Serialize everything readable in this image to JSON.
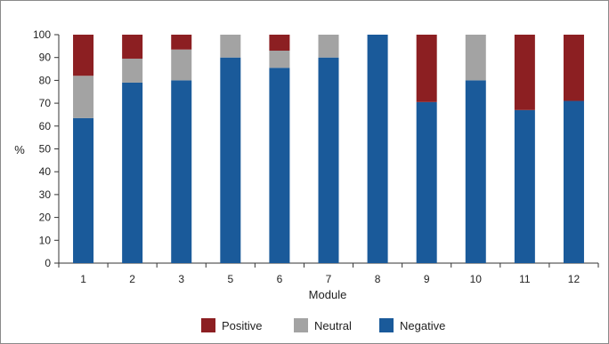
{
  "chart_data": {
    "type": "bar",
    "stacked": true,
    "categories": [
      "1",
      "2",
      "3",
      "5",
      "6",
      "7",
      "8",
      "9",
      "10",
      "11",
      "12"
    ],
    "series": [
      {
        "name": "Negative",
        "color": "#1a5a9a",
        "values": [
          63.5,
          79,
          80,
          90,
          85.5,
          90,
          100,
          70.5,
          80,
          67,
          71
        ]
      },
      {
        "name": "Neutral",
        "color": "#a3a3a3",
        "values": [
          18.5,
          10.5,
          13.5,
          10,
          7.5,
          10,
          0,
          0,
          20,
          0,
          0
        ]
      },
      {
        "name": "Positive",
        "color": "#8c1f22",
        "values": [
          18,
          10.5,
          6.5,
          0,
          7,
          0,
          0,
          29.5,
          0,
          33,
          29
        ]
      }
    ],
    "legend_order": [
      "Positive",
      "Neutral",
      "Negative"
    ],
    "xlabel": "Module",
    "ylabel": "%",
    "ylim": [
      0,
      100
    ],
    "yticks": [
      0,
      10,
      20,
      30,
      40,
      50,
      60,
      70,
      80,
      90,
      100
    ],
    "grid": false,
    "legend_position": "bottom"
  }
}
